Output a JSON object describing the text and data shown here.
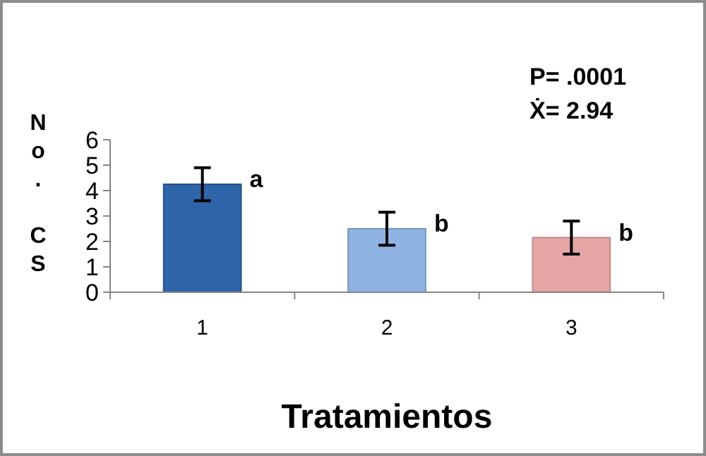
{
  "chart_data": {
    "type": "bar",
    "xlabel": "Tratamientos",
    "ylabel": "No. CS",
    "categories": [
      "1",
      "2",
      "3"
    ],
    "values": [
      4.25,
      2.5,
      2.15
    ],
    "colors": [
      "#2e64a8",
      "#8fb4e3",
      "#e6a5a5"
    ],
    "errors": [
      0.65,
      0.65,
      0.65
    ],
    "ylim": [
      0,
      6
    ],
    "yticks": [
      0,
      1,
      2,
      3,
      4,
      5,
      6
    ],
    "grid": false,
    "annotations": [
      "P= .0001",
      "Ẋ= 2.94",
      {
        "text": "a",
        "x": "1",
        "y": 4.25
      },
      {
        "text": "b",
        "x": "2",
        "y": 2.5
      },
      {
        "text": "b",
        "x": "3",
        "y": 2.15
      }
    ]
  }
}
